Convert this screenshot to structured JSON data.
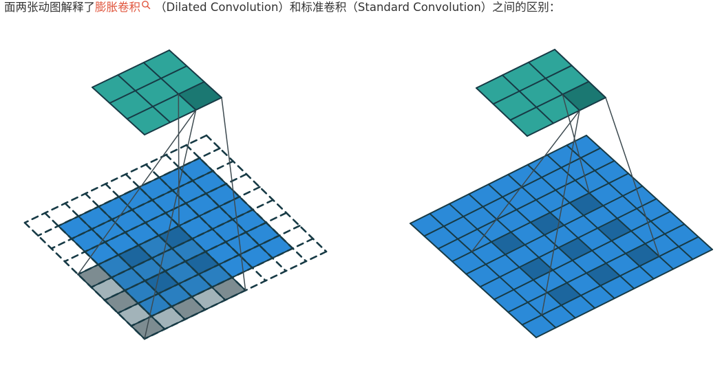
{
  "caption": {
    "prefix": "面两张动图解释了",
    "link_text": "膨胀卷积",
    "suffix": "（Dilated Convolution）和标准卷积（Standard Convolution）之间的区别："
  },
  "icons": {
    "link": "search-icon"
  },
  "colors": {
    "kernel_fill": "#2ea59a",
    "kernel_highlight": "#1b7872",
    "input_fill": "#2b8ad8",
    "input_highlight": "#1c669e",
    "pad_fill": "#a2b3b9",
    "grid_stroke": "#173a45",
    "dash_stroke": "#173a45",
    "link_color": "#e0553d"
  },
  "panels": [
    {
      "id": "dilated",
      "padded_grid": 9,
      "input_grid": 7,
      "kernel_grid": 3,
      "highlighted_input_cells": [
        [
          4,
          6
        ],
        [
          4,
          8
        ],
        [
          6,
          6
        ],
        [
          6,
          8
        ]
      ],
      "highlighted_pad_cells": [
        [
          4,
          7
        ],
        [
          4,
          9
        ],
        [
          5,
          6
        ],
        [
          5,
          7
        ],
        [
          5,
          8
        ],
        [
          5,
          9
        ],
        [
          6,
          7
        ],
        [
          6,
          9
        ],
        [
          7,
          6
        ],
        [
          7,
          7
        ],
        [
          7,
          8
        ],
        [
          7,
          9
        ]
      ]
    },
    {
      "id": "standard",
      "input_grid": 9,
      "kernel_grid": 3,
      "highlighted_input_cells": [
        [
          3,
          2
        ],
        [
          3,
          4
        ],
        [
          3,
          6
        ],
        [
          5,
          2
        ],
        [
          5,
          4
        ],
        [
          5,
          6
        ],
        [
          7,
          2
        ],
        [
          7,
          4
        ],
        [
          7,
          6
        ]
      ]
    }
  ]
}
